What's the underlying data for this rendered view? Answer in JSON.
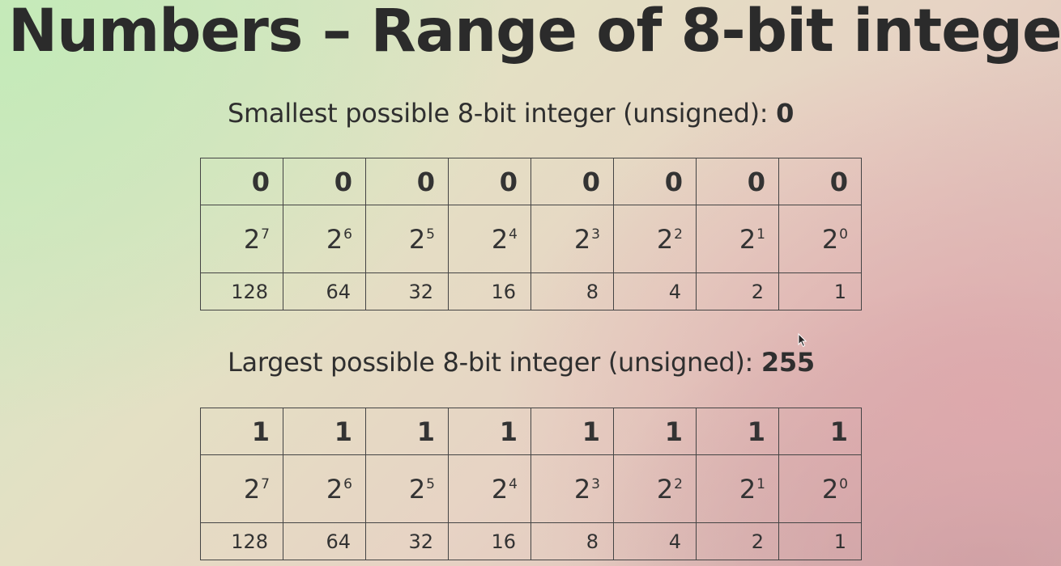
{
  "title": "Numbers – Range of 8-bit intege",
  "smallest": {
    "caption": "Smallest possible 8-bit integer (unsigned): ",
    "value": "0",
    "bits": [
      "0",
      "0",
      "0",
      "0",
      "0",
      "0",
      "0",
      "0"
    ]
  },
  "largest": {
    "caption": "Largest possible 8-bit integer (unsigned): ",
    "value": "255",
    "bits": [
      "1",
      "1",
      "1",
      "1",
      "1",
      "1",
      "1",
      "1"
    ]
  },
  "powers": {
    "base": "2",
    "exponents": [
      "7",
      "6",
      "5",
      "4",
      "3",
      "2",
      "1",
      "0"
    ],
    "values": [
      "128",
      "64",
      "32",
      "16",
      "8",
      "4",
      "2",
      "1"
    ]
  },
  "icons": {
    "cursor": "mouse-pointer-icon"
  }
}
